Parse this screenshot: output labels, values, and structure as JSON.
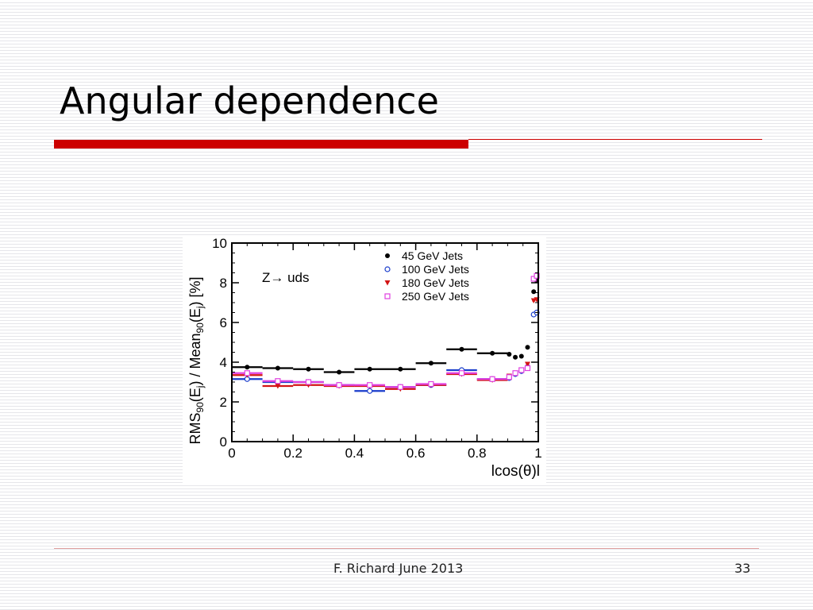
{
  "slide": {
    "title": "Angular dependence",
    "footer_left": "F. Richard June 2013",
    "page_number": "33"
  },
  "chart_data": {
    "type": "scatter",
    "annotation": "Z→ uds",
    "xlabel": "lcos(θ)l",
    "ylabel": "RMS90(Ej) / Mean90(Ej) [%]",
    "xlim": [
      0,
      1
    ],
    "ylim": [
      0,
      10
    ],
    "xticks": [
      "0",
      "0.2",
      "0.4",
      "0.6",
      "0.8",
      "1"
    ],
    "yticks": [
      "0",
      "2",
      "4",
      "6",
      "8",
      "10"
    ],
    "legend_position": "top-right",
    "colors": {
      "black": "#000000",
      "blue": "#1a3dcc",
      "red": "#d21414",
      "magenta": "#e040e0"
    },
    "series": [
      {
        "name": "45 GeV Jets",
        "marker": "filled-circle",
        "color": "#000000",
        "x": [
          0.05,
          0.15,
          0.25,
          0.35,
          0.45,
          0.55,
          0.65,
          0.75,
          0.85,
          0.905,
          0.925,
          0.945,
          0.965,
          0.985,
          0.995
        ],
        "y": [
          3.75,
          3.7,
          3.65,
          3.5,
          3.65,
          3.65,
          3.95,
          4.65,
          4.45,
          4.4,
          4.25,
          4.3,
          4.75,
          7.55,
          8.1
        ],
        "xerr": [
          0.05,
          0.05,
          0.05,
          0.05,
          0.05,
          0.05,
          0.05,
          0.05,
          0.05,
          0.005,
          0.005,
          0.005,
          0.005,
          0.005,
          0.005
        ]
      },
      {
        "name": "100 GeV Jets",
        "marker": "open-circle",
        "color": "#1a3dcc",
        "x": [
          0.05,
          0.15,
          0.25,
          0.35,
          0.45,
          0.55,
          0.65,
          0.75,
          0.85,
          0.905,
          0.925,
          0.945,
          0.965,
          0.985,
          0.995
        ],
        "y": [
          3.15,
          3.0,
          3.0,
          2.85,
          2.55,
          2.75,
          2.85,
          3.6,
          3.15,
          3.2,
          3.4,
          3.55,
          3.75,
          6.4,
          6.5
        ],
        "xerr": [
          0.05,
          0.05,
          0.05,
          0.05,
          0.05,
          0.05,
          0.05,
          0.05,
          0.05,
          0.005,
          0.005,
          0.005,
          0.005,
          0.005,
          0.005
        ]
      },
      {
        "name": "180 GeV Jets",
        "marker": "filled-triangle-down",
        "color": "#d21414",
        "x": [
          0.05,
          0.15,
          0.25,
          0.35,
          0.45,
          0.55,
          0.65,
          0.75,
          0.85,
          0.905,
          0.925,
          0.945,
          0.965,
          0.985,
          0.995
        ],
        "y": [
          3.35,
          2.8,
          2.85,
          2.8,
          2.8,
          2.65,
          2.85,
          3.4,
          3.1,
          3.3,
          3.45,
          3.6,
          3.9,
          7.1,
          7.15
        ],
        "xerr": [
          0.05,
          0.05,
          0.05,
          0.05,
          0.05,
          0.05,
          0.05,
          0.05,
          0.05,
          0.005,
          0.005,
          0.005,
          0.005,
          0.005,
          0.005
        ]
      },
      {
        "name": "250 GeV Jets",
        "marker": "open-square",
        "color": "#e040e0",
        "x": [
          0.05,
          0.15,
          0.25,
          0.35,
          0.45,
          0.55,
          0.65,
          0.75,
          0.85,
          0.905,
          0.925,
          0.945,
          0.965,
          0.985,
          0.995
        ],
        "y": [
          3.45,
          3.05,
          3.0,
          2.85,
          2.85,
          2.75,
          2.9,
          3.45,
          3.15,
          3.25,
          3.45,
          3.6,
          3.7,
          8.2,
          8.35
        ],
        "xerr": [
          0.05,
          0.05,
          0.05,
          0.05,
          0.05,
          0.05,
          0.05,
          0.05,
          0.05,
          0.005,
          0.005,
          0.005,
          0.005,
          0.005,
          0.005
        ]
      }
    ]
  }
}
